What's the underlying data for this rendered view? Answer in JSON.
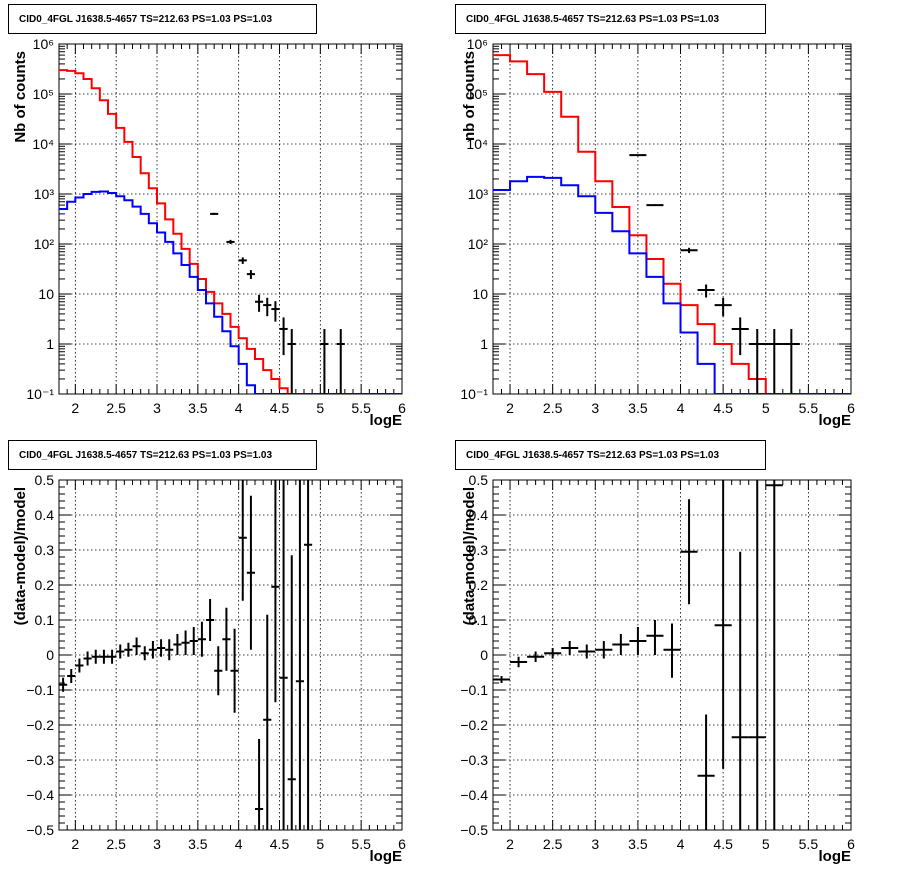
{
  "title": "CID0_4FGL J1638.5-4657 TS=212.63 PS=1.03 PS=1.03",
  "chart_data": [
    {
      "type": "line",
      "panel": "top-left",
      "title": "CID0_4FGL J1638.5-4657 TS=212.63 PS=1.03 PS=1.03",
      "xlabel": "logE",
      "ylabel": "Nb of counts",
      "xlim": [
        1.8,
        6
      ],
      "ylim": [
        0.1,
        1000000
      ],
      "log_y": true,
      "grid": true,
      "x_ticks": [
        "2",
        "2.5",
        "3",
        "3.5",
        "4",
        "4.5",
        "5",
        "5.5",
        "6"
      ],
      "y_ticks": [
        "10⁻¹",
        "1",
        "10",
        "10²",
        "10³",
        "10⁴",
        "10⁵",
        "10⁶"
      ],
      "bin_edges": [
        1.8,
        1.9,
        2.0,
        2.1,
        2.2,
        2.3,
        2.4,
        2.5,
        2.6,
        2.7,
        2.8,
        2.9,
        3.0,
        3.1,
        3.2,
        3.3,
        3.4,
        3.5,
        3.6,
        3.7,
        3.8,
        3.9,
        4.0,
        4.1,
        4.2,
        4.3,
        4.4,
        4.5,
        4.6,
        4.7,
        4.8,
        4.9,
        5.0,
        5.1,
        5.2,
        5.3,
        5.4,
        5.5,
        5.6,
        5.7,
        5.8,
        5.9,
        6.0
      ],
      "series": [
        {
          "color": "#ff0000",
          "values": [
            300000,
            290000,
            260000,
            200000,
            130000,
            75000,
            40000,
            21000,
            11000,
            5500,
            2600,
            1300,
            650,
            310,
            160,
            80,
            40,
            20,
            11,
            6.5,
            4,
            2.2,
            1.3,
            0.8,
            0.5,
            0.3,
            0.2,
            0.13,
            0.1,
            0.1,
            0.1,
            0.1,
            0.1,
            0.1,
            0.1,
            0.1,
            0.1,
            0.1,
            0.1,
            0.1,
            0.1,
            0.1
          ]
        },
        {
          "color": "#0000ff",
          "values": [
            500,
            700,
            850,
            1000,
            1100,
            1120,
            1050,
            900,
            750,
            560,
            400,
            260,
            170,
            110,
            65,
            38,
            22,
            12,
            6.5,
            3.5,
            1.8,
            0.9,
            0.4,
            0.15,
            0.1,
            0.1,
            0.1,
            0.1,
            0.1,
            0.1,
            0.1,
            0.1,
            0.1,
            0.1,
            0.1,
            0.1,
            0.1,
            0.1,
            0.1,
            0.1,
            0.1,
            0.1
          ]
        }
      ],
      "points": [
        {
          "x": 3.7,
          "y": 400,
          "xerr": 0.05,
          "ylo": 380,
          "yhi": 420
        },
        {
          "x": 3.9,
          "y": 110,
          "xerr": 0.05,
          "ylo": 100,
          "yhi": 121
        },
        {
          "x": 4.05,
          "y": 47,
          "xerr": 0.05,
          "ylo": 40,
          "yhi": 54
        },
        {
          "x": 4.15,
          "y": 25,
          "xerr": 0.05,
          "ylo": 20,
          "yhi": 30
        },
        {
          "x": 4.25,
          "y": 7,
          "xerr": 0.05,
          "ylo": 4.4,
          "yhi": 9.6
        },
        {
          "x": 4.35,
          "y": 6,
          "xerr": 0.05,
          "ylo": 3.6,
          "yhi": 8.4
        },
        {
          "x": 4.45,
          "y": 5,
          "xerr": 0.05,
          "ylo": 2.8,
          "yhi": 7.2
        },
        {
          "x": 4.55,
          "y": 2,
          "xerr": 0.05,
          "ylo": 0.6,
          "yhi": 3.4
        },
        {
          "x": 4.65,
          "y": 1,
          "xerr": 0.05,
          "ylo": 0.1,
          "yhi": 2
        },
        {
          "x": 5.05,
          "y": 1,
          "xerr": 0.05,
          "ylo": 0.1,
          "yhi": 2
        },
        {
          "x": 5.25,
          "y": 1,
          "xerr": 0.05,
          "ylo": 0.1,
          "yhi": 2
        }
      ]
    },
    {
      "type": "line",
      "panel": "top-right",
      "title": "CID0_4FGL J1638.5-4657 TS=212.63 PS=1.03 PS=1.03",
      "xlabel": "logE",
      "ylabel": "nb of counts",
      "xlim": [
        1.8,
        6
      ],
      "ylim": [
        0.1,
        1000000
      ],
      "log_y": true,
      "grid": true,
      "x_ticks": [
        "2",
        "2.5",
        "3",
        "3.5",
        "4",
        "4.5",
        "5",
        "5.5",
        "6"
      ],
      "y_ticks": [
        "10⁻¹",
        "1",
        "10",
        "10²",
        "10³",
        "10⁴",
        "10⁵",
        "10⁶"
      ],
      "bin_edges": [
        1.8,
        2.0,
        2.2,
        2.4,
        2.6,
        2.8,
        3.0,
        3.2,
        3.4,
        3.6,
        3.8,
        4.0,
        4.2,
        4.4,
        4.6,
        4.8,
        5.0,
        5.2,
        5.4,
        5.6,
        5.8,
        6.0
      ],
      "series": [
        {
          "color": "#ff0000",
          "values": [
            600000,
            450000,
            250000,
            110000,
            35000,
            7000,
            1800,
            550,
            150,
            50,
            16,
            6,
            2.5,
            1,
            0.4,
            0.2,
            0.1,
            0.1,
            0.1,
            0.1,
            0.1
          ]
        },
        {
          "color": "#0000ff",
          "values": [
            1200,
            1800,
            2200,
            2100,
            1500,
            900,
            420,
            180,
            65,
            22,
            6.5,
            1.7,
            0.4,
            0.1,
            0.1,
            0.1,
            0.1,
            0.1,
            0.1,
            0.1,
            0.1
          ]
        }
      ],
      "points": [
        {
          "x": 3.5,
          "y": 6000,
          "xerr": 0.1,
          "ylo": 5850,
          "yhi": 6150
        },
        {
          "x": 3.7,
          "y": 600,
          "xerr": 0.1,
          "ylo": 575,
          "yhi": 625
        },
        {
          "x": 4.1,
          "y": 75,
          "xerr": 0.1,
          "ylo": 66,
          "yhi": 84
        },
        {
          "x": 4.3,
          "y": 12,
          "xerr": 0.1,
          "ylo": 8.5,
          "yhi": 15.5
        },
        {
          "x": 4.5,
          "y": 6,
          "xerr": 0.1,
          "ylo": 3.6,
          "yhi": 8.4
        },
        {
          "x": 4.7,
          "y": 2,
          "xerr": 0.1,
          "ylo": 0.6,
          "yhi": 3.4
        },
        {
          "x": 4.9,
          "y": 1,
          "xerr": 0.1,
          "ylo": 0.1,
          "yhi": 2
        },
        {
          "x": 5.1,
          "y": 1,
          "xerr": 0.1,
          "ylo": 0.1,
          "yhi": 2
        },
        {
          "x": 5.3,
          "y": 1,
          "xerr": 0.1,
          "ylo": 0.1,
          "yhi": 2
        }
      ]
    },
    {
      "type": "scatter",
      "panel": "bottom-left",
      "title": "CID0_4FGL J1638.5-4657 TS=212.63 PS=1.03 PS=1.03",
      "xlabel": "logE",
      "ylabel": "(data-model)/model",
      "xlim": [
        1.8,
        6
      ],
      "ylim": [
        -0.5,
        0.5
      ],
      "log_y": false,
      "grid": true,
      "x_ticks": [
        "2",
        "2.5",
        "3",
        "3.5",
        "4",
        "4.5",
        "5",
        "5.5",
        "6"
      ],
      "y_ticks": [
        "−0.5",
        "−0.4",
        "−0.3",
        "−0.2",
        "−0.1",
        "0",
        "0.1",
        "0.2",
        "0.3",
        "0.4",
        "0.5"
      ],
      "points": [
        {
          "x": 1.85,
          "y": -0.085,
          "xerr": 0.05,
          "ylo": -0.105,
          "yhi": -0.065
        },
        {
          "x": 1.95,
          "y": -0.06,
          "xerr": 0.05,
          "ylo": -0.08,
          "yhi": -0.04
        },
        {
          "x": 2.05,
          "y": -0.03,
          "xerr": 0.05,
          "ylo": -0.05,
          "yhi": -0.01
        },
        {
          "x": 2.15,
          "y": -0.01,
          "xerr": 0.05,
          "ylo": -0.03,
          "yhi": 0.01
        },
        {
          "x": 2.25,
          "y": -0.005,
          "xerr": 0.05,
          "ylo": -0.025,
          "yhi": 0.015
        },
        {
          "x": 2.35,
          "y": -0.005,
          "xerr": 0.05,
          "ylo": -0.025,
          "yhi": 0.015
        },
        {
          "x": 2.45,
          "y": -0.005,
          "xerr": 0.05,
          "ylo": -0.025,
          "yhi": 0.015
        },
        {
          "x": 2.55,
          "y": 0.01,
          "xerr": 0.05,
          "ylo": -0.01,
          "yhi": 0.03
        },
        {
          "x": 2.65,
          "y": 0.015,
          "xerr": 0.05,
          "ylo": -0.005,
          "yhi": 0.035
        },
        {
          "x": 2.75,
          "y": 0.025,
          "xerr": 0.05,
          "ylo": 0.0,
          "yhi": 0.05
        },
        {
          "x": 2.85,
          "y": 0.005,
          "xerr": 0.05,
          "ylo": -0.015,
          "yhi": 0.025
        },
        {
          "x": 2.95,
          "y": 0.015,
          "xerr": 0.05,
          "ylo": -0.01,
          "yhi": 0.04
        },
        {
          "x": 3.05,
          "y": 0.02,
          "xerr": 0.05,
          "ylo": -0.005,
          "yhi": 0.045
        },
        {
          "x": 3.15,
          "y": 0.015,
          "xerr": 0.05,
          "ylo": -0.015,
          "yhi": 0.045
        },
        {
          "x": 3.25,
          "y": 0.03,
          "xerr": 0.05,
          "ylo": 0.0,
          "yhi": 0.06
        },
        {
          "x": 3.35,
          "y": 0.035,
          "xerr": 0.05,
          "ylo": 0.0,
          "yhi": 0.07
        },
        {
          "x": 3.45,
          "y": 0.04,
          "xerr": 0.05,
          "ylo": 0.0,
          "yhi": 0.08
        },
        {
          "x": 3.55,
          "y": 0.045,
          "xerr": 0.05,
          "ylo": -0.005,
          "yhi": 0.095
        },
        {
          "x": 3.65,
          "y": 0.1,
          "xerr": 0.05,
          "ylo": 0.04,
          "yhi": 0.16
        },
        {
          "x": 3.75,
          "y": -0.045,
          "xerr": 0.05,
          "ylo": -0.115,
          "yhi": 0.025
        },
        {
          "x": 3.85,
          "y": 0.045,
          "xerr": 0.05,
          "ylo": -0.045,
          "yhi": 0.135
        },
        {
          "x": 3.95,
          "y": -0.045,
          "xerr": 0.05,
          "ylo": -0.165,
          "yhi": 0.075
        },
        {
          "x": 4.05,
          "y": 0.335,
          "xerr": 0.05,
          "ylo": 0.155,
          "yhi": 0.5
        },
        {
          "x": 4.15,
          "y": 0.235,
          "xerr": 0.05,
          "ylo": 0.015,
          "yhi": 0.455
        },
        {
          "x": 4.25,
          "y": -0.44,
          "xerr": 0.05,
          "ylo": -0.5,
          "yhi": -0.24
        },
        {
          "x": 4.35,
          "y": -0.185,
          "xerr": 0.05,
          "ylo": -0.5,
          "yhi": 0.115
        },
        {
          "x": 4.45,
          "y": 0.195,
          "xerr": 0.05,
          "ylo": -0.135,
          "yhi": 0.5
        },
        {
          "x": 4.55,
          "y": -0.065,
          "xerr": 0.05,
          "ylo": -0.5,
          "yhi": 0.5
        },
        {
          "x": 4.65,
          "y": -0.355,
          "xerr": 0.05,
          "ylo": -0.5,
          "yhi": 0.285
        },
        {
          "x": 4.75,
          "y": -0.075,
          "xerr": 0.05,
          "ylo": -0.5,
          "yhi": 0.5
        },
        {
          "x": 4.85,
          "y": 0.315,
          "xerr": 0.05,
          "ylo": -0.5,
          "yhi": 0.5
        }
      ]
    },
    {
      "type": "scatter",
      "panel": "bottom-right",
      "title": "CID0_4FGL J1638.5-4657 TS=212.63 PS=1.03 PS=1.03",
      "xlabel": "logE",
      "ylabel": "(data-model)/model",
      "xlim": [
        1.8,
        6
      ],
      "ylim": [
        -0.5,
        0.5
      ],
      "log_y": false,
      "grid": true,
      "x_ticks": [
        "2",
        "2.5",
        "3",
        "3.5",
        "4",
        "4.5",
        "5",
        "5.5",
        "6"
      ],
      "y_ticks": [
        "−0.5",
        "−0.4",
        "−0.3",
        "−0.2",
        "−0.1",
        "0",
        "0.1",
        "0.2",
        "0.3",
        "0.4",
        "0.5"
      ],
      "points": [
        {
          "x": 1.9,
          "y": -0.07,
          "xerr": 0.1,
          "ylo": -0.08,
          "yhi": -0.06
        },
        {
          "x": 2.1,
          "y": -0.02,
          "xerr": 0.1,
          "ylo": -0.035,
          "yhi": -0.005
        },
        {
          "x": 2.3,
          "y": -0.005,
          "xerr": 0.1,
          "ylo": -0.02,
          "yhi": 0.01
        },
        {
          "x": 2.5,
          "y": 0.005,
          "xerr": 0.1,
          "ylo": -0.01,
          "yhi": 0.02
        },
        {
          "x": 2.7,
          "y": 0.02,
          "xerr": 0.1,
          "ylo": 0.0,
          "yhi": 0.04
        },
        {
          "x": 2.9,
          "y": 0.01,
          "xerr": 0.1,
          "ylo": -0.01,
          "yhi": 0.03
        },
        {
          "x": 3.1,
          "y": 0.015,
          "xerr": 0.1,
          "ylo": -0.01,
          "yhi": 0.04
        },
        {
          "x": 3.3,
          "y": 0.03,
          "xerr": 0.1,
          "ylo": 0.0,
          "yhi": 0.06
        },
        {
          "x": 3.5,
          "y": 0.04,
          "xerr": 0.1,
          "ylo": 0.0,
          "yhi": 0.08
        },
        {
          "x": 3.7,
          "y": 0.055,
          "xerr": 0.1,
          "ylo": 0.0,
          "yhi": 0.1
        },
        {
          "x": 3.9,
          "y": 0.015,
          "xerr": 0.1,
          "ylo": -0.065,
          "yhi": 0.09
        },
        {
          "x": 4.1,
          "y": 0.295,
          "xerr": 0.1,
          "ylo": 0.145,
          "yhi": 0.445
        },
        {
          "x": 4.3,
          "y": -0.345,
          "xerr": 0.1,
          "ylo": -0.5,
          "yhi": -0.17
        },
        {
          "x": 4.5,
          "y": 0.085,
          "xerr": 0.1,
          "ylo": -0.325,
          "yhi": 0.5
        },
        {
          "x": 4.7,
          "y": -0.235,
          "xerr": 0.1,
          "ylo": -0.5,
          "yhi": 0.295
        },
        {
          "x": 4.9,
          "y": -0.235,
          "xerr": 0.1,
          "ylo": -0.5,
          "yhi": 0.5
        },
        {
          "x": 5.1,
          "y": 0.485,
          "xerr": 0.1,
          "ylo": -0.5,
          "yhi": 0.5
        }
      ]
    }
  ]
}
